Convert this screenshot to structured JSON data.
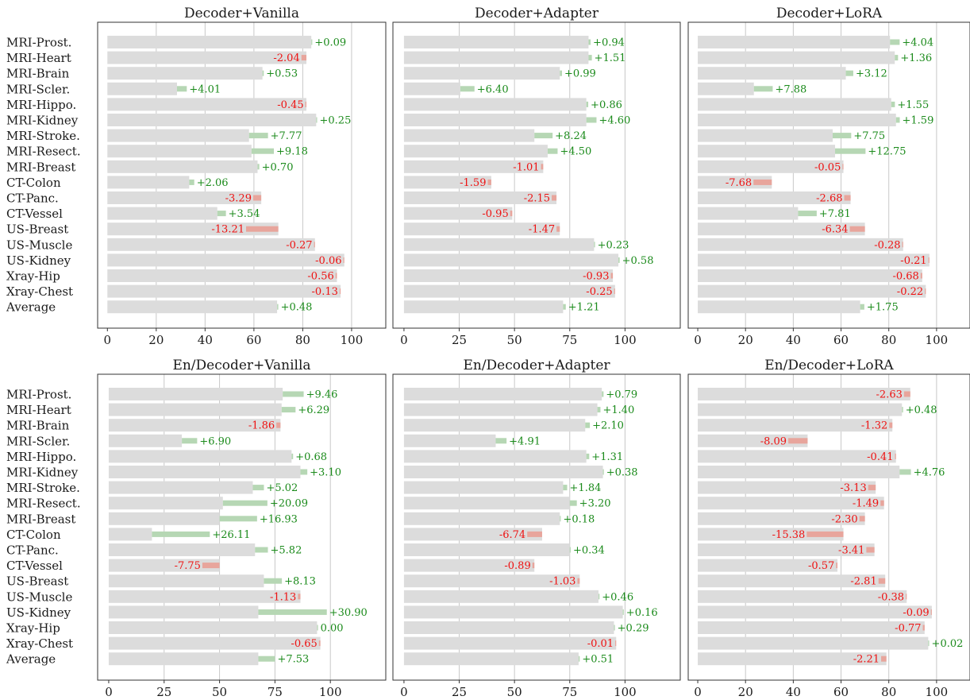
{
  "chart_data": [
    {
      "type": "bar",
      "title": "Decoder+Vanilla",
      "categories": [
        "MRI-Prost.",
        "MRI-Heart",
        "MRI-Brain",
        "MRI-Scler.",
        "MRI-Hippo.",
        "MRI-Kidney",
        "MRI-Stroke.",
        "MRI-Resect.",
        "MRI-Breast",
        "CT-Colon",
        "CT-Panc.",
        "CT-Vessel",
        "US-Breast",
        "US-Muscle",
        "US-Kidney",
        "Xray-Hip",
        "Xray-Chest",
        "Average"
      ],
      "base": [
        83.5,
        81.5,
        63.5,
        28.5,
        81.5,
        85.5,
        58,
        59,
        61.5,
        33.5,
        63,
        45,
        70,
        85,
        97,
        94,
        95.5,
        69.5
      ],
      "delta": [
        0.09,
        -2.04,
        0.53,
        4.01,
        -0.45,
        0.25,
        7.77,
        9.18,
        0.7,
        2.06,
        -3.29,
        3.54,
        -13.21,
        -0.27,
        -0.06,
        -0.56,
        -0.13,
        0.48
      ],
      "labels": [
        "+0.09",
        "-2.04",
        "+0.53",
        "+4.01",
        "-0.45",
        "+0.25",
        "+7.77",
        "+9.18",
        "+0.70",
        "+2.06",
        "-3.29",
        "+3.54",
        "-13.21",
        "-0.27",
        "-0.06",
        "-0.56",
        "-0.13",
        "+0.48"
      ],
      "xlim": [
        -4,
        114
      ],
      "xticks": [
        0,
        20,
        40,
        60,
        80,
        100
      ],
      "grid": true
    },
    {
      "type": "bar",
      "title": "Decoder+Adapter",
      "categories": [
        "MRI-Prost.",
        "MRI-Heart",
        "MRI-Brain",
        "MRI-Scler.",
        "MRI-Hippo.",
        "MRI-Kidney",
        "MRI-Stroke.",
        "MRI-Resect.",
        "MRI-Breast",
        "CT-Colon",
        "CT-Panc.",
        "CT-Vessel",
        "US-Breast",
        "US-Muscle",
        "US-Kidney",
        "Xray-Hip",
        "Xray-Chest",
        "Average"
      ],
      "base": [
        83.5,
        83.5,
        70.5,
        25.5,
        82.5,
        82.5,
        59,
        65,
        63,
        39.5,
        69,
        49,
        70.5,
        86,
        97,
        94.5,
        95.5,
        72
      ],
      "delta": [
        0.94,
        1.51,
        0.99,
        6.4,
        0.86,
        4.6,
        8.24,
        4.5,
        -1.01,
        -1.59,
        -2.15,
        -0.95,
        -1.47,
        0.23,
        0.58,
        -0.93,
        -0.25,
        1.21
      ],
      "labels": [
        "+0.94",
        "+1.51",
        "+0.99",
        "+6.40",
        "+0.86",
        "+4.60",
        "+8.24",
        "+4.50",
        "-1.01",
        "-1.59",
        "-2.15",
        "-0.95",
        "-1.47",
        "+0.23",
        "+0.58",
        "-0.93",
        "-0.25",
        "+1.21"
      ],
      "xlim": [
        -5,
        125
      ],
      "xticks": [
        0,
        25,
        50,
        75,
        100
      ],
      "grid": true
    },
    {
      "type": "bar",
      "title": "Decoder+LoRA",
      "categories": [
        "MRI-Prost.",
        "MRI-Heart",
        "MRI-Brain",
        "MRI-Scler.",
        "MRI-Hippo.",
        "MRI-Kidney",
        "MRI-Stroke.",
        "MRI-Resect.",
        "MRI-Breast",
        "CT-Colon",
        "CT-Panc.",
        "CT-Vessel",
        "US-Breast",
        "US-Muscle",
        "US-Kidney",
        "Xray-Hip",
        "Xray-Chest",
        "Average"
      ],
      "base": [
        80.5,
        82.5,
        62,
        23.5,
        81,
        83,
        56.5,
        57.5,
        61,
        31,
        64,
        42,
        70,
        86,
        97,
        94,
        95.5,
        68
      ],
      "delta": [
        4.04,
        1.36,
        3.12,
        7.88,
        1.55,
        1.59,
        7.75,
        12.75,
        -0.05,
        -7.68,
        -2.68,
        7.81,
        -6.34,
        -0.28,
        -0.21,
        -0.68,
        -0.22,
        1.75
      ],
      "labels": [
        "+4.04",
        "+1.36",
        "+3.12",
        "+7.88",
        "+1.55",
        "+1.59",
        "+7.75",
        "+12.75",
        "-0.05",
        "-7.68",
        "-2.68",
        "+7.81",
        "-6.34",
        "-0.28",
        "-0.21",
        "-0.68",
        "-0.22",
        "+1.75"
      ],
      "xlim": [
        -4,
        114
      ],
      "xticks": [
        0,
        20,
        40,
        60,
        80,
        100
      ],
      "grid": true
    },
    {
      "type": "bar",
      "title": "En/Decoder+Vanilla",
      "categories": [
        "MRI-Prost.",
        "MRI-Heart",
        "MRI-Brain",
        "MRI-Scler.",
        "MRI-Hippo.",
        "MRI-Kidney",
        "MRI-Stroke.",
        "MRI-Resect.",
        "MRI-Breast",
        "CT-Colon",
        "CT-Panc.",
        "CT-Vessel",
        "US-Breast",
        "US-Muscle",
        "US-Kidney",
        "Xray-Hip",
        "Xray-Chest",
        "Average"
      ],
      "base": [
        78.5,
        78,
        77.5,
        33,
        82.5,
        86.5,
        65,
        51.5,
        50,
        19.5,
        66,
        50,
        70,
        86.5,
        67.5,
        94,
        95.5,
        67.5
      ],
      "delta": [
        9.46,
        6.29,
        -1.86,
        6.9,
        0.68,
        3.1,
        5.02,
        20.09,
        16.93,
        26.11,
        5.82,
        -7.75,
        8.13,
        -1.13,
        30.9,
        0.0,
        -0.65,
        7.53
      ],
      "labels": [
        "+9.46",
        "+6.29",
        "-1.86",
        "+6.90",
        "+0.68",
        "+3.10",
        "+5.02",
        "+20.09",
        "+16.93",
        "+26.11",
        "+5.82",
        "-7.75",
        "+8.13",
        "-1.13",
        "+30.90",
        "0.00",
        "-0.65",
        "+7.53"
      ],
      "xlim": [
        -5,
        125
      ],
      "xticks": [
        0,
        25,
        50,
        75,
        100
      ],
      "grid": true
    },
    {
      "type": "bar",
      "title": "En/Decoder+Adapter",
      "categories": [
        "MRI-Prost.",
        "MRI-Heart",
        "MRI-Brain",
        "MRI-Scler.",
        "MRI-Hippo.",
        "MRI-Kidney",
        "MRI-Stroke.",
        "MRI-Resect.",
        "MRI-Breast",
        "CT-Colon",
        "CT-Panc.",
        "CT-Vessel",
        "US-Breast",
        "US-Muscle",
        "US-Kidney",
        "Xray-Hip",
        "Xray-Chest",
        "Average"
      ],
      "base": [
        89.5,
        87.5,
        82,
        41.5,
        82.5,
        90,
        72,
        75,
        70.5,
        62.5,
        75,
        59,
        79.5,
        88,
        99,
        95,
        96,
        79
      ],
      "delta": [
        0.79,
        1.4,
        2.1,
        4.91,
        1.31,
        0.38,
        1.84,
        3.2,
        0.18,
        -6.74,
        0.34,
        -0.89,
        -1.03,
        0.46,
        0.16,
        0.29,
        -0.01,
        0.51
      ],
      "labels": [
        "+0.79",
        "+1.40",
        "+2.10",
        "+4.91",
        "+1.31",
        "+0.38",
        "+1.84",
        "+3.20",
        "+0.18",
        "-6.74",
        "+0.34",
        "-0.89",
        "-1.03",
        "+0.46",
        "+0.16",
        "+0.29",
        "-0.01",
        "+0.51"
      ],
      "xlim": [
        -5,
        125
      ],
      "xticks": [
        0,
        25,
        50,
        75,
        100
      ],
      "grid": true
    },
    {
      "type": "bar",
      "title": "En/Decoder+LoRA",
      "categories": [
        "MRI-Prost.",
        "MRI-Heart",
        "MRI-Brain",
        "MRI-Scler.",
        "MRI-Hippo.",
        "MRI-Kidney",
        "MRI-Stroke.",
        "MRI-Resect.",
        "MRI-Breast",
        "CT-Colon",
        "CT-Panc.",
        "CT-Vessel",
        "US-Breast",
        "US-Muscle",
        "US-Kidney",
        "Xray-Hip",
        "Xray-Chest",
        "Average"
      ],
      "base": [
        89,
        85.5,
        81.5,
        46,
        83,
        84.5,
        74.5,
        78,
        70,
        61,
        74,
        58.5,
        78.5,
        87.5,
        98,
        95,
        96.5,
        79
      ],
      "delta": [
        -2.63,
        0.48,
        -1.32,
        -8.09,
        -0.41,
        4.76,
        -3.13,
        -1.49,
        -2.3,
        -15.38,
        -3.41,
        -0.57,
        -2.81,
        -0.38,
        -0.09,
        -0.77,
        0.02,
        -2.21
      ],
      "labels": [
        "-2.63",
        "+0.48",
        "-1.32",
        "-8.09",
        "-0.41",
        "+4.76",
        "-3.13",
        "-1.49",
        "-2.30",
        "-15.38",
        "-3.41",
        "-0.57",
        "-2.81",
        "-0.38",
        "-0.09",
        "-0.77",
        "+0.02",
        "-2.21"
      ],
      "xlim": [
        -4,
        114
      ],
      "xticks": [
        0,
        20,
        40,
        60,
        80,
        100
      ],
      "grid": true
    }
  ],
  "colors": {
    "base_bar": "#dcdcdc",
    "positive_bar": "#b6d7b4",
    "negative_bar": "#e8a59c",
    "positive_text": "#1a8a1a",
    "negative_text": "#ee1111",
    "grid": "#c8c8c8",
    "axis": "#333333"
  }
}
